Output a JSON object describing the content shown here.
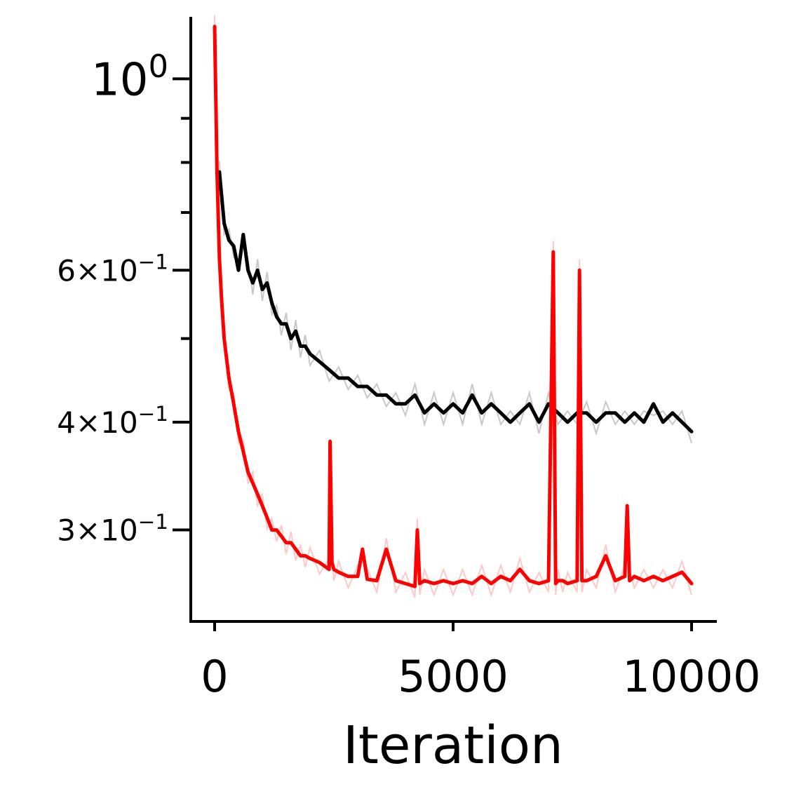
{
  "chart_data": {
    "type": "line",
    "title": "",
    "xlabel": "Iteration",
    "ylabel": "",
    "yscale": "log",
    "xlim": [
      -500,
      10500
    ],
    "ylim": [
      0.235,
      1.18
    ],
    "grid": false,
    "legend": "none",
    "x_ticks": [
      {
        "value": 0,
        "label": "0"
      },
      {
        "value": 5000,
        "label": "5000"
      },
      {
        "value": 10000,
        "label": "10000"
      }
    ],
    "y_ticks": [
      {
        "value": 1.0,
        "mantissa": "",
        "base": "10",
        "exp": "0"
      },
      {
        "value": 0.6,
        "mantissa": "6",
        "base": "10",
        "exp": "−1"
      },
      {
        "value": 0.4,
        "mantissa": "4",
        "base": "10",
        "exp": "−1"
      },
      {
        "value": 0.3,
        "mantissa": "3",
        "base": "10",
        "exp": "−1"
      }
    ],
    "y_minor_ticks": [
      0.9,
      0.8,
      0.7,
      0.5
    ],
    "series": [
      {
        "color": "#000000",
        "band_color": "#c8c8c8",
        "x": [
          100,
          200,
          300,
          400,
          500,
          600,
          700,
          800,
          900,
          1000,
          1100,
          1200,
          1300,
          1400,
          1500,
          1600,
          1700,
          1800,
          1900,
          2000,
          2200,
          2400,
          2600,
          2800,
          3000,
          3200,
          3400,
          3600,
          3800,
          4000,
          4200,
          4400,
          4600,
          4800,
          5000,
          5200,
          5400,
          5600,
          5800,
          6000,
          6200,
          6400,
          6600,
          6800,
          7000,
          7200,
          7400,
          7600,
          7800,
          8000,
          8200,
          8400,
          8600,
          8800,
          9000,
          9200,
          9400,
          9600,
          9800,
          10000
        ],
        "y": [
          0.78,
          0.68,
          0.65,
          0.64,
          0.6,
          0.66,
          0.6,
          0.58,
          0.6,
          0.57,
          0.58,
          0.55,
          0.53,
          0.52,
          0.52,
          0.5,
          0.51,
          0.49,
          0.49,
          0.48,
          0.47,
          0.46,
          0.45,
          0.45,
          0.44,
          0.44,
          0.43,
          0.43,
          0.42,
          0.42,
          0.43,
          0.41,
          0.42,
          0.41,
          0.42,
          0.41,
          0.43,
          0.41,
          0.42,
          0.41,
          0.4,
          0.41,
          0.42,
          0.4,
          0.42,
          0.41,
          0.4,
          0.41,
          0.41,
          0.4,
          0.41,
          0.41,
          0.4,
          0.41,
          0.4,
          0.42,
          0.4,
          0.41,
          0.4,
          0.39
        ]
      },
      {
        "color": "#ff0000",
        "band_color": "#ffc8c8",
        "x": [
          0,
          50,
          100,
          150,
          200,
          300,
          400,
          500,
          600,
          700,
          800,
          900,
          1000,
          1100,
          1200,
          1300,
          1400,
          1500,
          1600,
          1700,
          1800,
          1900,
          2000,
          2200,
          2400,
          2420,
          2460,
          2500,
          2600,
          2800,
          3000,
          3100,
          3200,
          3400,
          3600,
          3800,
          4000,
          4200,
          4250,
          4300,
          4400,
          4600,
          4800,
          5000,
          5200,
          5400,
          5600,
          5800,
          6000,
          6200,
          6400,
          6600,
          6800,
          7000,
          7100,
          7150,
          7200,
          7300,
          7400,
          7600,
          7650,
          7700,
          7800,
          8000,
          8200,
          8400,
          8600,
          8650,
          8700,
          8800,
          9000,
          9200,
          9400,
          9600,
          9800,
          10000
        ],
        "y": [
          1.15,
          0.78,
          0.62,
          0.55,
          0.5,
          0.45,
          0.42,
          0.39,
          0.37,
          0.35,
          0.34,
          0.33,
          0.32,
          0.31,
          0.3,
          0.3,
          0.295,
          0.29,
          0.29,
          0.285,
          0.28,
          0.28,
          0.278,
          0.275,
          0.27,
          0.38,
          0.275,
          0.27,
          0.268,
          0.265,
          0.265,
          0.285,
          0.263,
          0.262,
          0.285,
          0.262,
          0.26,
          0.258,
          0.3,
          0.26,
          0.262,
          0.26,
          0.262,
          0.26,
          0.262,
          0.26,
          0.265,
          0.26,
          0.265,
          0.262,
          0.27,
          0.262,
          0.26,
          0.262,
          0.63,
          0.26,
          0.262,
          0.262,
          0.26,
          0.262,
          0.6,
          0.262,
          0.262,
          0.265,
          0.28,
          0.262,
          0.265,
          0.32,
          0.262,
          0.265,
          0.262,
          0.265,
          0.262,
          0.265,
          0.268,
          0.26
        ]
      }
    ]
  }
}
